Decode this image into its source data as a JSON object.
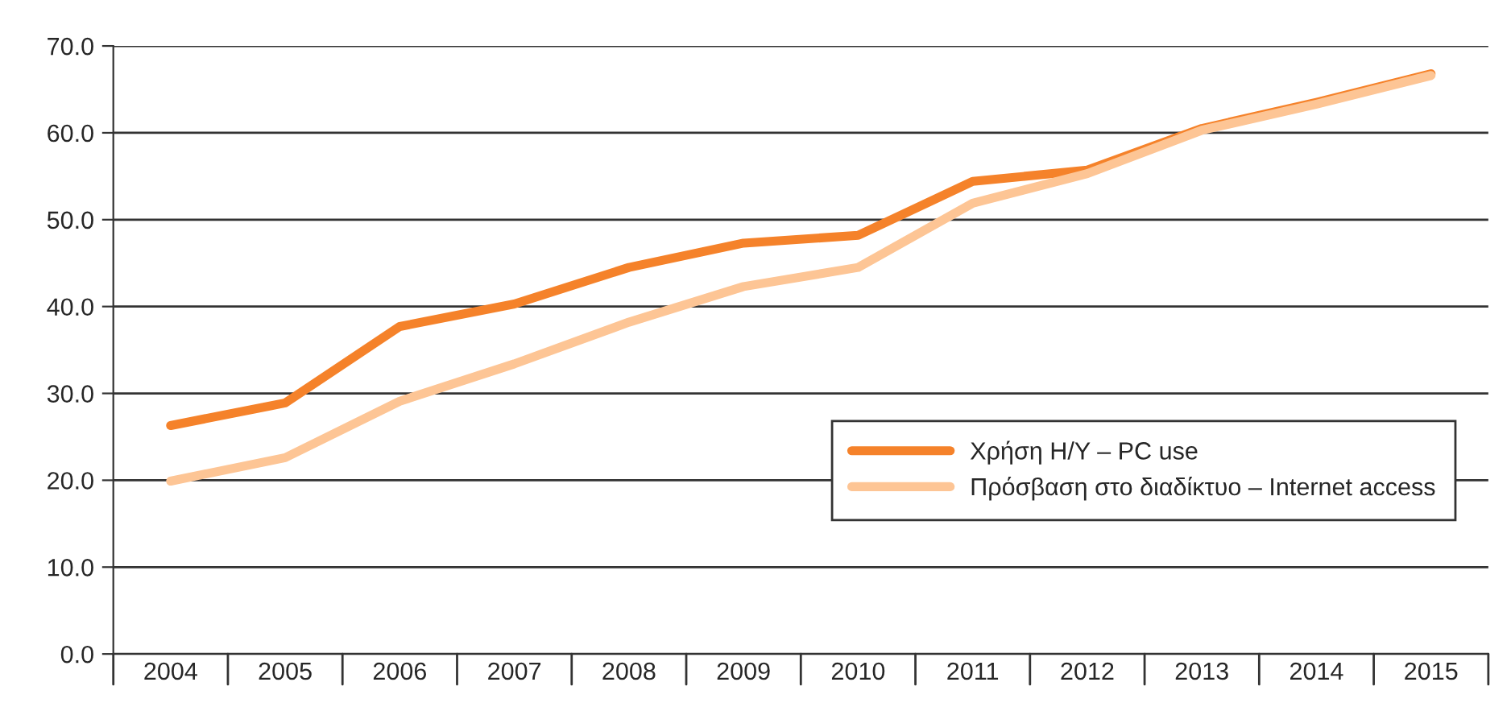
{
  "chart_data": {
    "type": "line",
    "categories": [
      "2004",
      "2005",
      "2006",
      "2007",
      "2008",
      "2009",
      "2010",
      "2011",
      "2012",
      "2013",
      "2014",
      "2015"
    ],
    "series": [
      {
        "name": "Χρήση Η/Υ – PC use",
        "color": "#f5822a",
        "values": [
          26.3,
          28.9,
          37.7,
          40.3,
          44.5,
          47.3,
          48.2,
          54.4,
          55.7,
          60.5,
          63.5,
          66.8
        ]
      },
      {
        "name": "Πρόσβαση στο διαδίκτυο – Internet access",
        "color": "#fdc595",
        "values": [
          19.9,
          22.6,
          29.1,
          33.4,
          38.2,
          42.3,
          44.5,
          51.9,
          55.3,
          60.3,
          63.3,
          66.6
        ]
      }
    ],
    "ylim": [
      0,
      70
    ],
    "yticks": [
      {
        "value": 0,
        "label": "0.0"
      },
      {
        "value": 10,
        "label": "10.0"
      },
      {
        "value": 20,
        "label": "20.0"
      },
      {
        "value": 30,
        "label": "30.0"
      },
      {
        "value": 40,
        "label": "40.0"
      },
      {
        "value": 50,
        "label": "50.0"
      },
      {
        "value": 60,
        "label": "60.0"
      },
      {
        "value": 70,
        "label": "70.0"
      }
    ],
    "grid": "y",
    "legend": "bottom right",
    "marker": "none",
    "line_style": "solid"
  }
}
